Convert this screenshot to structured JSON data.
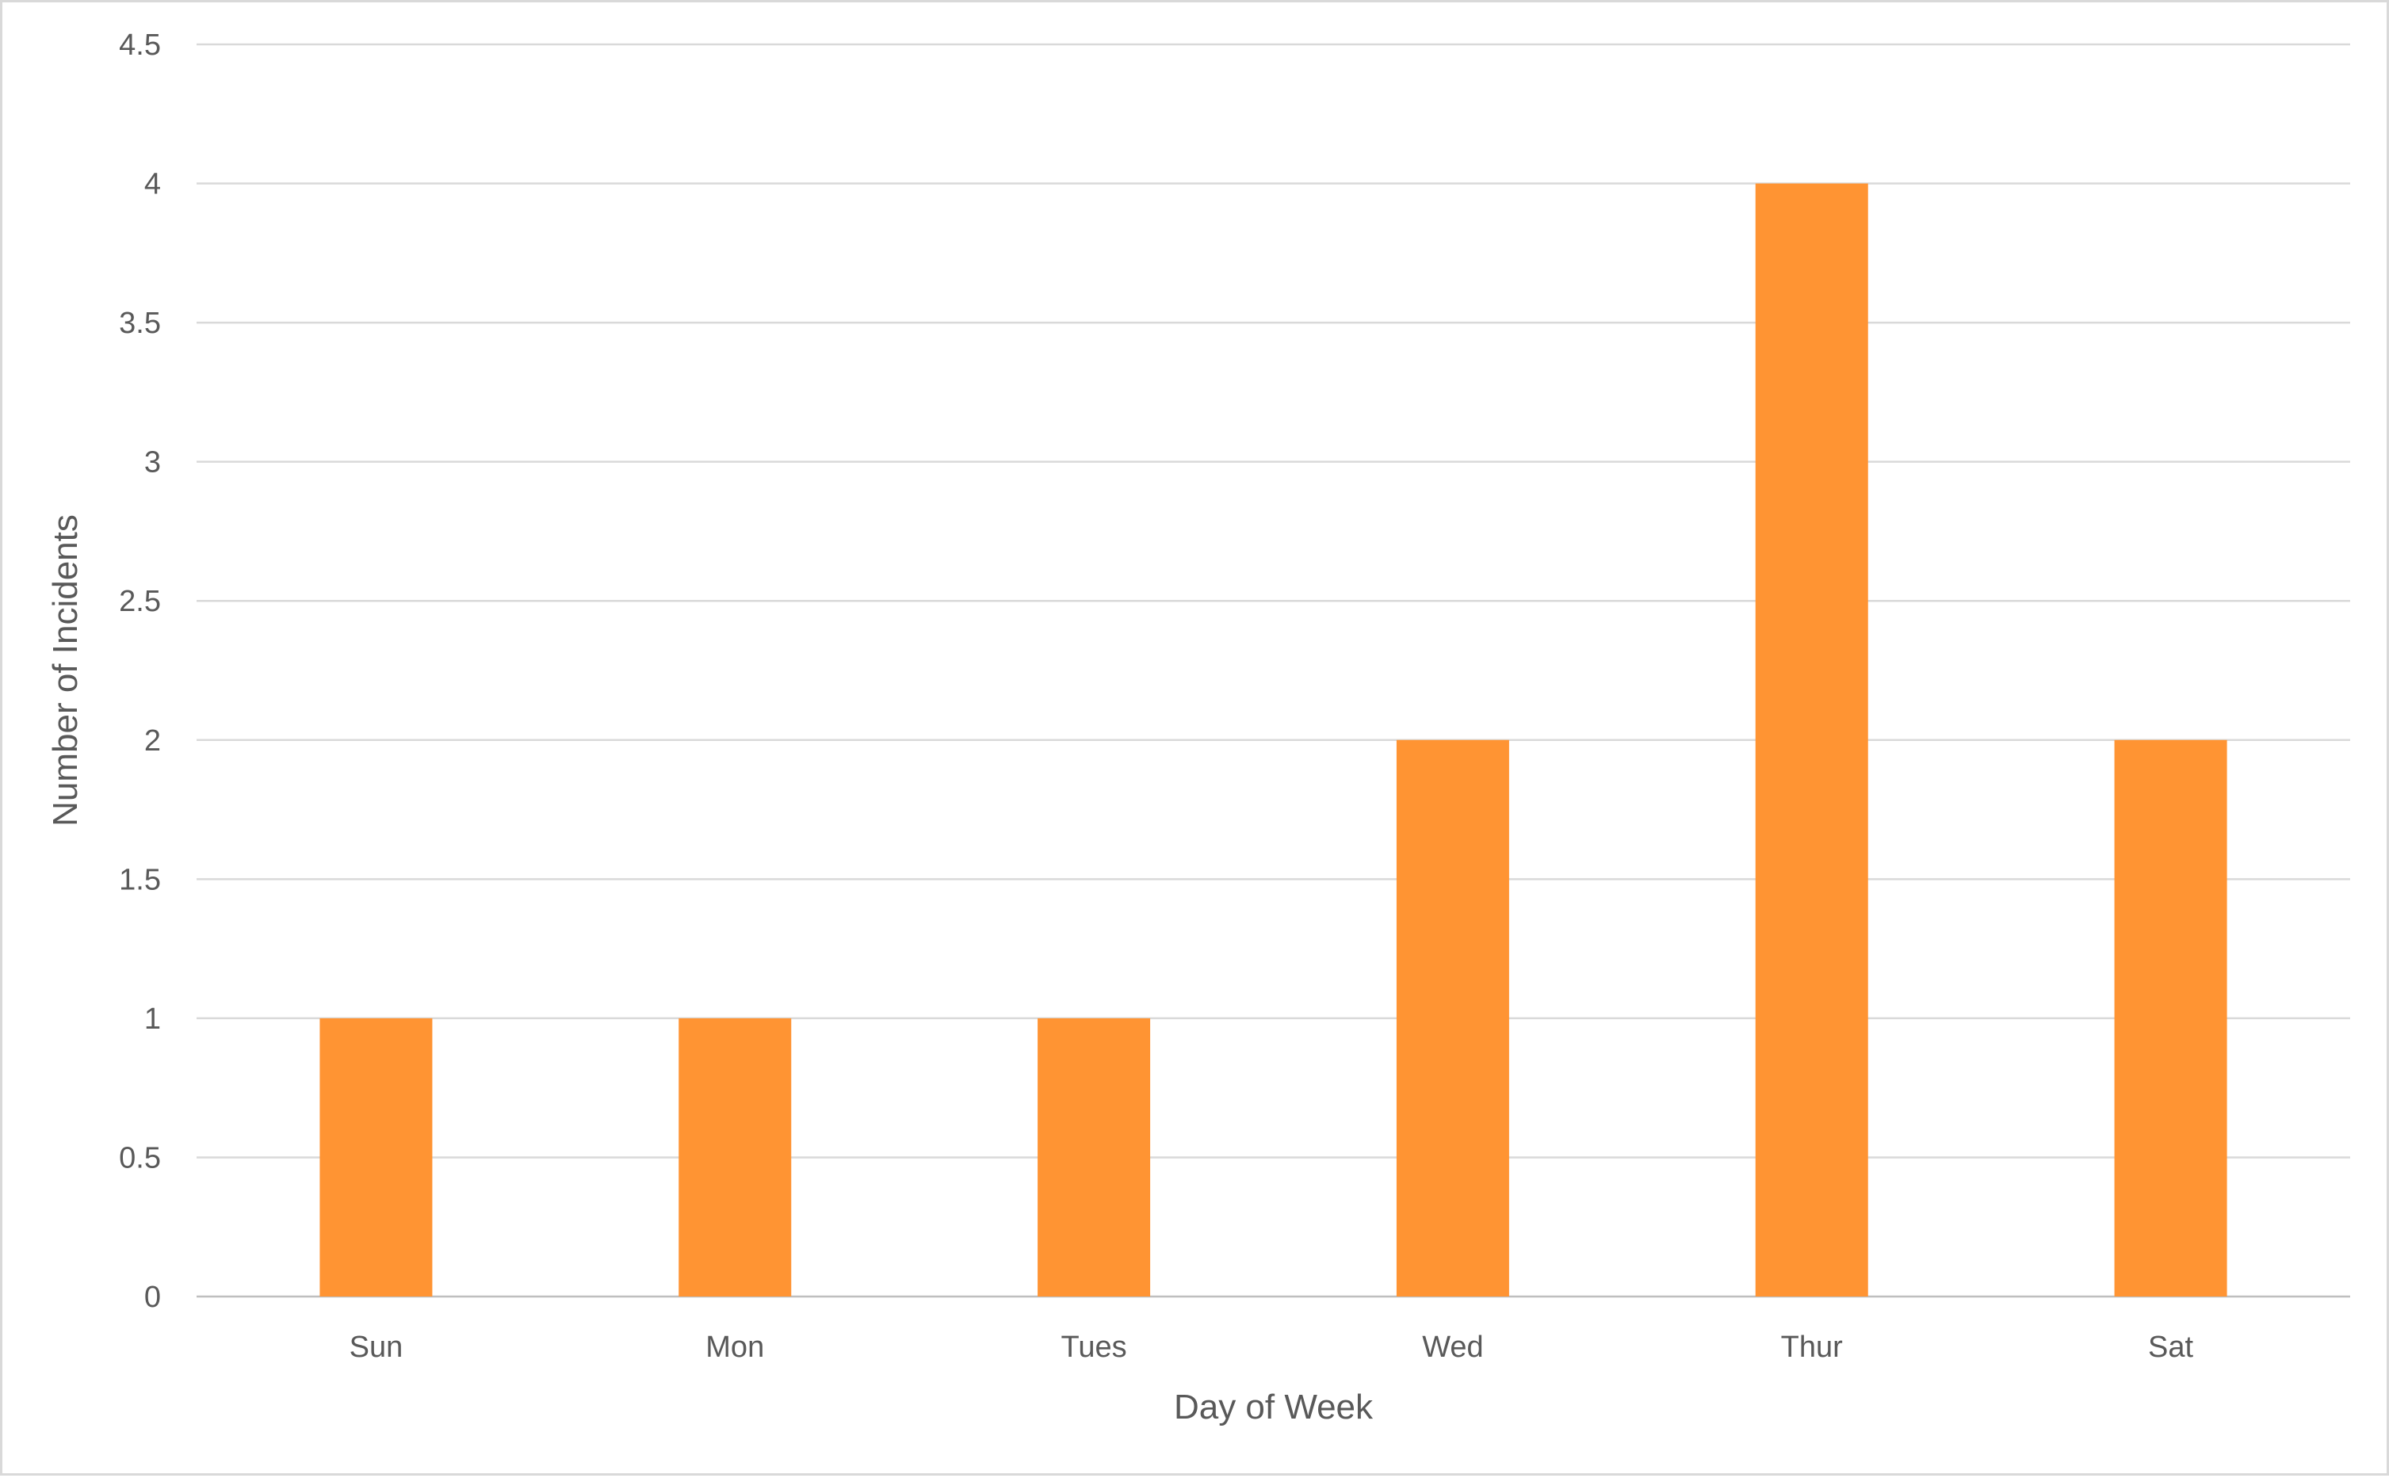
{
  "chart_data": {
    "type": "bar",
    "categories": [
      "Sun",
      "Mon",
      "Tues",
      "Wed",
      "Thur",
      "Sat"
    ],
    "values": [
      1,
      1,
      1,
      2,
      4,
      2
    ],
    "title": "",
    "xlabel": "Day of Week",
    "ylabel": "Number of Incidents",
    "ylim": [
      0,
      4.5
    ],
    "yticks": [
      "0",
      "0.5",
      "1",
      "1.5",
      "2",
      "2.5",
      "3",
      "3.5",
      "4",
      "4.5"
    ],
    "grid": true,
    "legend": "none",
    "colors": {
      "bar": "#ff9433",
      "gridline": "#d9d9d9",
      "text": "#595959"
    }
  }
}
